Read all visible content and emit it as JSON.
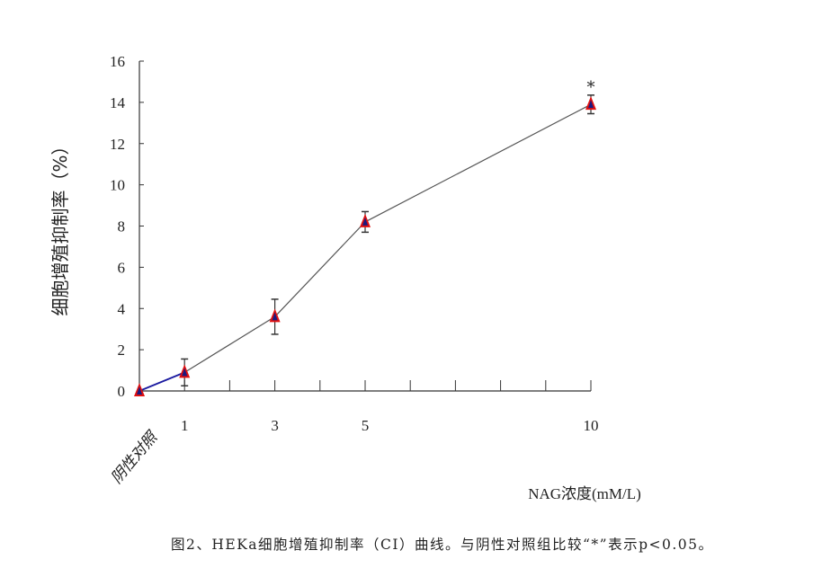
{
  "chart_data": {
    "type": "line",
    "categories": [
      "阴性对照",
      "1",
      "3",
      "5",
      "10"
    ],
    "x": [
      0,
      1,
      3,
      5,
      10
    ],
    "values": [
      0,
      0.9,
      3.6,
      8.2,
      13.9
    ],
    "error": [
      0,
      0.65,
      0.85,
      0.5,
      0.45
    ],
    "significance": [
      "",
      "",
      "",
      "",
      "*"
    ],
    "ylabel": "细胞增殖抑制率（%）",
    "xlabel": "NAG浓度(mM/L)",
    "ylim": [
      0,
      16
    ],
    "yticks": [
      0,
      2,
      4,
      6,
      8,
      10,
      12,
      14,
      16
    ],
    "xlim": [
      0,
      10
    ],
    "grid": false,
    "colors": {
      "line": "#555555",
      "first_segment": "#1a1aa0",
      "marker_outer": "#e01010",
      "marker_inner": "#1a1a80"
    }
  },
  "caption": "图2、HEKa细胞增殖抑制率（CI）曲线。与阴性对照组比较“*”表示p<0.05。"
}
